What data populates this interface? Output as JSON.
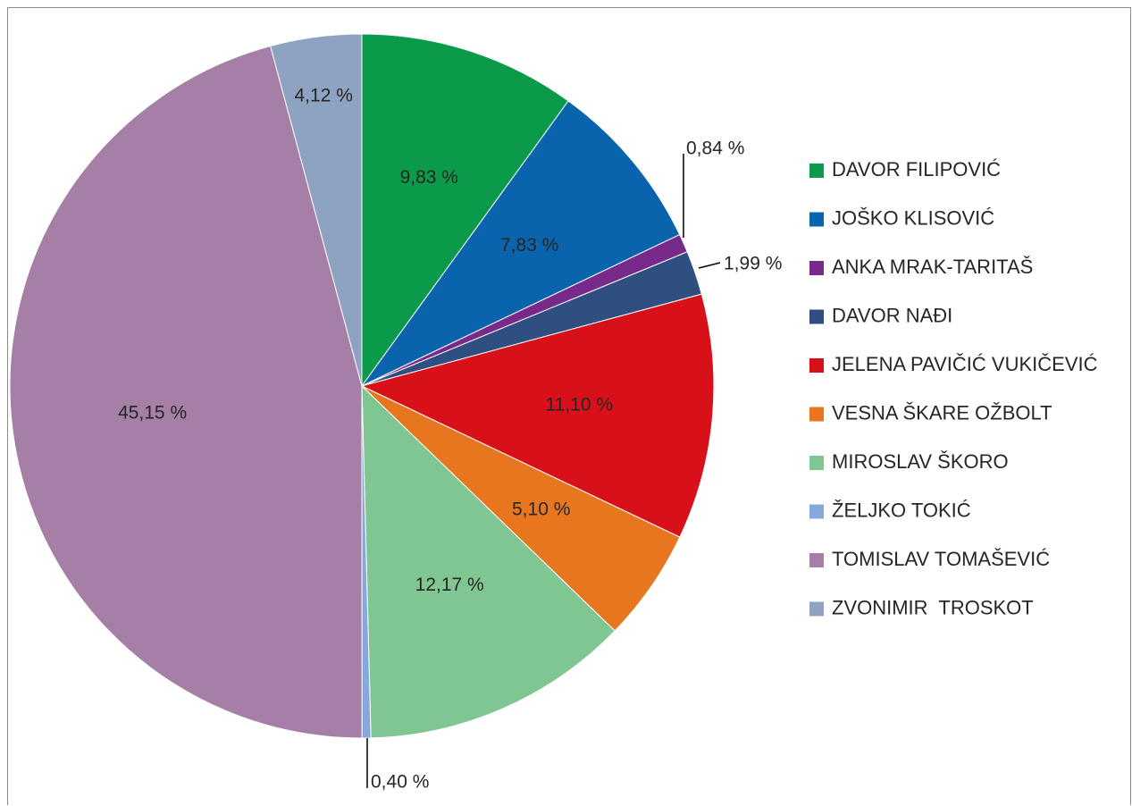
{
  "chart_data": {
    "type": "pie",
    "title": "",
    "legend_position": "right",
    "slices": [
      {
        "name": "DAVOR FILIPOVIĆ",
        "value": 9.83,
        "label": "9,83 %",
        "color": "#0a9a4a"
      },
      {
        "name": "JOŠKO KLISOVIĆ",
        "value": 7.83,
        "label": "7,83 %",
        "color": "#0a63ad"
      },
      {
        "name": "ANKA MRAK-TARITAŠ",
        "value": 0.84,
        "label": "0,84 %",
        "color": "#782a8a"
      },
      {
        "name": "DAVOR NAĐI",
        "value": 1.99,
        "label": "1,99 %",
        "color": "#2e4f80"
      },
      {
        "name": "JELENA PAVIČIĆ VUKIČEVIĆ",
        "value": 11.1,
        "label": "11,10 %",
        "color": "#d7101a"
      },
      {
        "name": "VESNA ŠKARE OŽBOLT",
        "value": 5.1,
        "label": "5,10 %",
        "color": "#e8761f"
      },
      {
        "name": "MIROSLAV ŠKORO",
        "value": 12.17,
        "label": "12,17 %",
        "color": "#7fc692"
      },
      {
        "name": "ŽELJKO TOKIĆ",
        "value": 0.4,
        "label": "0,40 %",
        "color": "#86a8dc"
      },
      {
        "name": "TOMISLAV TOMAŠEVIĆ",
        "value": 45.15,
        "label": "45,15 %",
        "color": "#a67fa6"
      },
      {
        "name": "ZVONIMIR  TROSKOT",
        "value": 4.12,
        "label": "4,12 %",
        "color": "#8ea2c2"
      }
    ]
  }
}
